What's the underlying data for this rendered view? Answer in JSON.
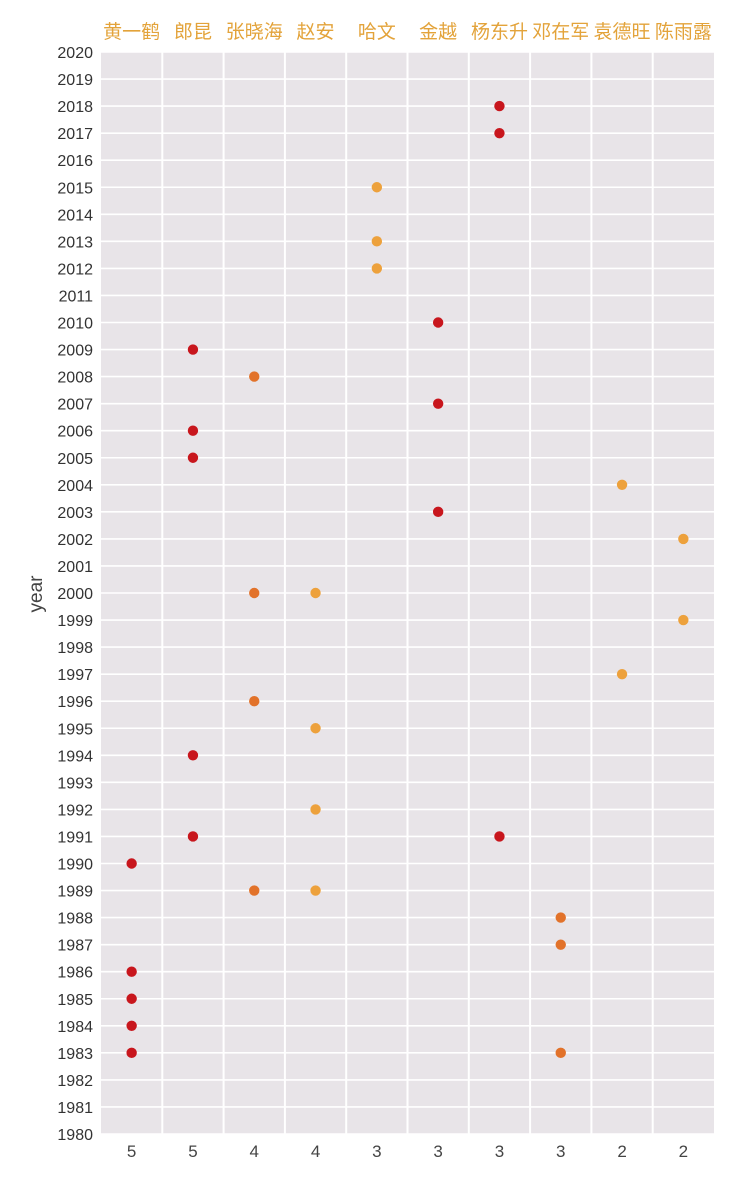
{
  "chart_data": {
    "type": "scatter",
    "ylabel": "year",
    "ylim": [
      1980,
      2020
    ],
    "grid": true,
    "colors": {
      "background": "#e8e4e8",
      "grid": "#ffffff",
      "name_label": "#e3a33a",
      "count_label": "#444444",
      "dot_5": "#c8161d",
      "dot_4": "#e2722a",
      "dot_3_red": "#c8161d",
      "dot_3_orange": "#e2722a",
      "dot_3_light": "#eda13c",
      "dot_2": "#eda13c"
    },
    "categories": [
      "黄一鹤",
      "郎昆",
      "张晓海",
      "赵安",
      "哈文",
      "金越",
      "杨东升",
      "邓在军",
      "袁德旺",
      "陈雨露"
    ],
    "counts": [
      "5",
      "5",
      "4",
      "4",
      "3",
      "3",
      "3",
      "3",
      "2",
      "2"
    ],
    "series": [
      {
        "category": "黄一鹤",
        "years": [
          1983,
          1984,
          1985,
          1986,
          1990
        ],
        "color": "#c8161d"
      },
      {
        "category": "郎昆",
        "years": [
          1991,
          1994,
          2005,
          2006,
          2009
        ],
        "color": "#c8161d"
      },
      {
        "category": "张晓海",
        "years": [
          1989,
          1996,
          2000,
          2008
        ],
        "color": "#e2722a"
      },
      {
        "category": "赵安",
        "years": [
          1989,
          1992,
          1995,
          2000
        ],
        "color": "#eda13c"
      },
      {
        "category": "哈文",
        "years": [
          2012,
          2013,
          2015
        ],
        "color": "#eda13c"
      },
      {
        "category": "金越",
        "years": [
          2003,
          2007,
          2010
        ],
        "color": "#c8161d"
      },
      {
        "category": "杨东升",
        "years": [
          1991,
          2017,
          2018
        ],
        "color": "#c8161d"
      },
      {
        "category": "邓在军",
        "years": [
          1983,
          1987,
          1988
        ],
        "color": "#e2722a"
      },
      {
        "category": "袁德旺",
        "years": [
          1997,
          2004
        ],
        "color": "#eda13c"
      },
      {
        "category": "陈雨露",
        "years": [
          1999,
          2002
        ],
        "color": "#eda13c"
      }
    ]
  }
}
